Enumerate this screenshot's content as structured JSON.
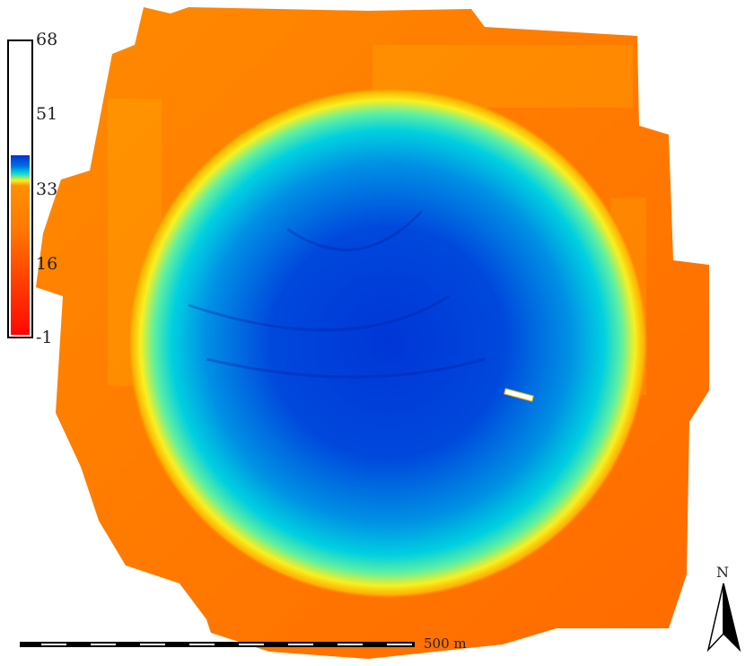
{
  "legend": {
    "ticks": [
      "68",
      "51",
      "33",
      "16",
      "-1"
    ],
    "colors": {
      "high": "#0030d8",
      "mid_cyan": "#00d8e0",
      "mid_yellow": "#f8f020",
      "orange": "#ff7a00",
      "low": "#ff0000"
    }
  },
  "scale_bar": {
    "label": "500 m"
  },
  "north_arrow": {
    "label": "N"
  },
  "map": {
    "type": "elevation raster",
    "icon": "north-arrow-icon"
  }
}
